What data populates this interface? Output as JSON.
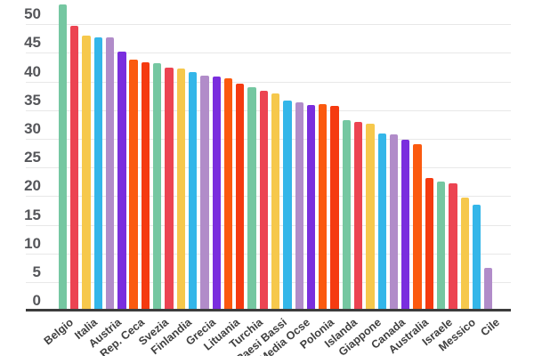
{
  "chart_data": {
    "type": "bar",
    "title": "",
    "xlabel": "",
    "ylabel": "",
    "categories": [
      "Belgio",
      "",
      "Italia",
      "",
      "Austria",
      "",
      "Rep. Ceca",
      "",
      "Svezia",
      "",
      "Finlandia",
      "",
      "Grecia",
      "",
      "Lituania",
      "",
      "Turchia",
      "",
      "Paesi Bassi",
      "",
      "Media Ocse",
      "",
      "Polonia",
      "",
      "Islanda",
      "",
      "Giappone",
      "",
      "Canada",
      "",
      "Australia",
      "",
      "Israele",
      "",
      "Messico",
      "",
      "Cile"
    ],
    "values": [
      53.5,
      49.8,
      48.1,
      47.8,
      47.8,
      45.3,
      43.9,
      43.4,
      43.3,
      42.5,
      42.4,
      41.8,
      41.1,
      40.9,
      40.7,
      39.7,
      39.1,
      38.5,
      38.0,
      36.8,
      36.4,
      36.0,
      36.2,
      35.8,
      33.4,
      33.0,
      32.7,
      31.0,
      30.8,
      30.0,
      29.1,
      23.2,
      22.6,
      22.3,
      19.8,
      18.6,
      7.6
    ],
    "palette": [
      "#75C7A1",
      "#EC4452",
      "#F6C84C",
      "#34B6E9",
      "#B18CC9",
      "#7A2EDE",
      "#FB5A0F",
      "#F53A10"
    ],
    "yticks": [
      "0",
      "5",
      "10",
      "15",
      "20",
      "25",
      "30",
      "35",
      "40",
      "45",
      "50"
    ],
    "ylim": [
      0,
      53.5
    ],
    "grid": true,
    "legend": false,
    "colors": {
      "background": "#ffffff",
      "gridline": "#e8e8e8",
      "axis_line": "#3c3c3c",
      "y_tick_label": "#55565a",
      "x_tick_label": "#3f3f3f"
    }
  }
}
